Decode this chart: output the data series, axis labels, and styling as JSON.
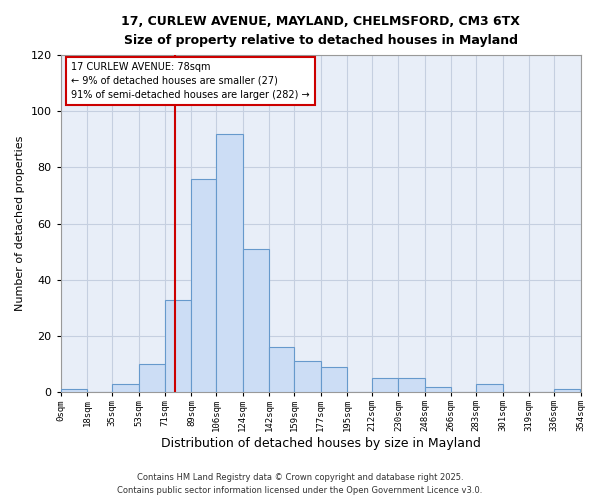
{
  "title": "17, CURLEW AVENUE, MAYLAND, CHELMSFORD, CM3 6TX",
  "subtitle": "Size of property relative to detached houses in Mayland",
  "xlabel": "Distribution of detached houses by size in Mayland",
  "ylabel": "Number of detached properties",
  "bar_color": "#ccddf5",
  "bar_edge_color": "#6699cc",
  "background_color": "#e8eef8",
  "grid_color": "#d0d8e8",
  "bin_edges": [
    0,
    18,
    35,
    53,
    71,
    89,
    106,
    124,
    142,
    159,
    177,
    195,
    212,
    230,
    248,
    266,
    283,
    301,
    319,
    336,
    354
  ],
  "bin_labels": [
    "0sqm",
    "18sqm",
    "35sqm",
    "53sqm",
    "71sqm",
    "89sqm",
    "106sqm",
    "124sqm",
    "142sqm",
    "159sqm",
    "177sqm",
    "195sqm",
    "212sqm",
    "230sqm",
    "248sqm",
    "266sqm",
    "283sqm",
    "301sqm",
    "319sqm",
    "336sqm",
    "354sqm"
  ],
  "counts": [
    1,
    0,
    3,
    10,
    33,
    76,
    92,
    51,
    16,
    11,
    9,
    0,
    5,
    5,
    2,
    0,
    3,
    0,
    0,
    1
  ],
  "red_line_x": 78,
  "ylim": [
    0,
    120
  ],
  "yticks": [
    0,
    20,
    40,
    60,
    80,
    100,
    120
  ],
  "annotation_title": "17 CURLEW AVENUE: 78sqm",
  "annotation_line1": "← 9% of detached houses are smaller (27)",
  "annotation_line2": "91% of semi-detached houses are larger (282) →",
  "footer_line1": "Contains HM Land Registry data © Crown copyright and database right 2025.",
  "footer_line2": "Contains public sector information licensed under the Open Government Licence v3.0."
}
